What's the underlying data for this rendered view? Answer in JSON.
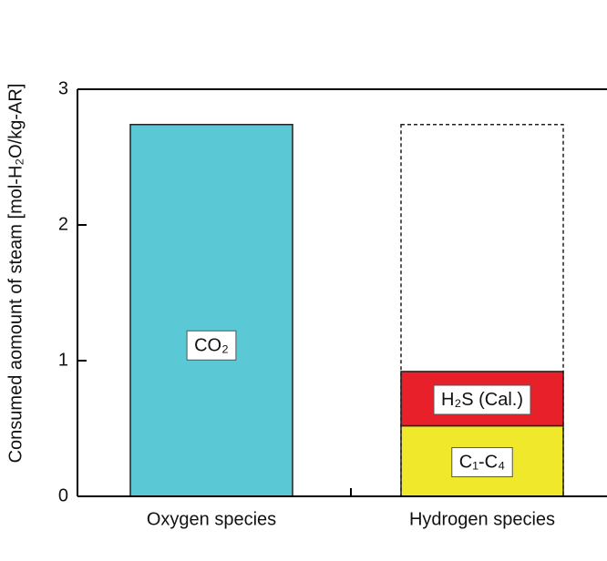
{
  "chart_data": {
    "type": "stacked_bar",
    "y_label": "Consumed aomount of steam [mol-H₂O/kg-AR]",
    "categories": [
      "Oxygen species",
      "Hydrogen species"
    ],
    "series": [
      {
        "name": "CO₂",
        "color": "#5bc8d6",
        "values": [
          2.74,
          null
        ]
      },
      {
        "name": "C₁-C₄",
        "color": "#f0e82a",
        "values": [
          null,
          0.52
        ]
      },
      {
        "name": "H₂S (Cal.)",
        "color": "#e8202a",
        "values": [
          null,
          0.4
        ]
      }
    ],
    "dashed_total": [
      null,
      2.74
    ],
    "ylim": [
      0,
      3
    ],
    "yticks": [
      0,
      1,
      2,
      3
    ]
  }
}
